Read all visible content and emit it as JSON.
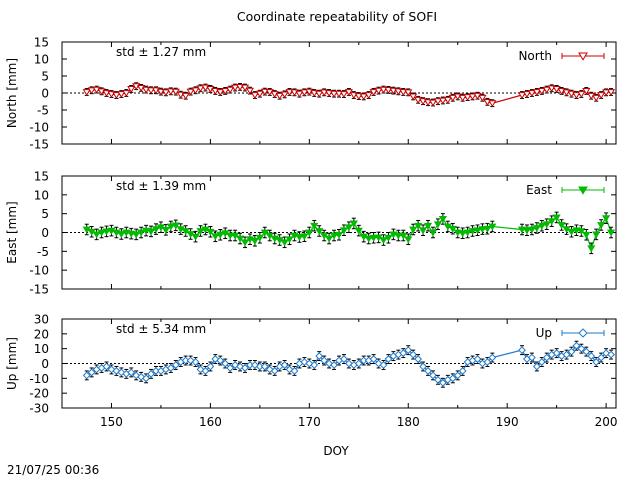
{
  "title": "Coordinate repeatability of SOFI",
  "timestamp": "21/07/25 00:36",
  "xlabel": "DOY",
  "x_ticks": [
    "150",
    "160",
    "170",
    "180",
    "190",
    "200"
  ],
  "colors": {
    "north": "#cc0000",
    "east": "#00bb00",
    "up": "#1f78c8",
    "error": "#000000"
  },
  "chart_data": [
    {
      "type": "line",
      "name": "North",
      "title": "Coordinate repeatability of SOFI",
      "xlabel": "DOY",
      "ylabel": "North [mm]",
      "xlim": [
        145,
        201
      ],
      "ylim": [
        -15,
        15
      ],
      "y_ticks": [
        "15",
        "10",
        "5",
        "0",
        "-5",
        "-10",
        "-15"
      ],
      "legend": "North",
      "legend_position": "top-right",
      "annotation": "std ± 1.27 mm",
      "marker": "triangle-down-open",
      "error_bar": 1.0,
      "x": [
        147.5,
        148,
        148.5,
        149,
        149.5,
        150,
        150.5,
        151,
        151.5,
        152,
        152.5,
        153,
        153.5,
        154,
        154.5,
        155,
        155.5,
        156,
        156.5,
        157,
        157.5,
        158,
        158.5,
        159,
        159.5,
        160,
        160.5,
        161,
        161.5,
        162,
        162.5,
        163,
        163.5,
        164,
        164.5,
        165,
        165.5,
        166,
        166.5,
        167,
        167.5,
        168,
        168.5,
        169,
        169.5,
        170,
        170.5,
        171,
        171.5,
        172,
        172.5,
        173,
        173.5,
        174,
        174.5,
        175,
        175.5,
        176,
        176.5,
        177,
        177.5,
        178,
        178.5,
        179,
        179.5,
        180,
        180.5,
        181,
        181.5,
        182,
        182.5,
        183,
        183.5,
        184,
        184.5,
        185,
        185.5,
        186,
        186.5,
        187,
        187.5,
        188,
        188.5,
        191.5,
        192,
        192.5,
        193,
        193.5,
        194,
        194.5,
        195,
        195.5,
        196,
        196.5,
        197,
        197.5,
        198,
        198.5,
        199,
        199.5,
        200,
        200.5
      ],
      "values": [
        0.3,
        0.8,
        1.0,
        0.5,
        0.0,
        -0.3,
        -0.6,
        -0.3,
        0.0,
        1.2,
        2.0,
        1.5,
        1.0,
        0.8,
        0.8,
        0.4,
        0.2,
        0.5,
        0.4,
        -0.5,
        -0.8,
        0.4,
        0.8,
        1.4,
        1.6,
        1.2,
        0.6,
        0.3,
        0.6,
        1.0,
        1.6,
        1.8,
        1.6,
        0.7,
        -0.6,
        -0.2,
        0.4,
        0.3,
        -0.3,
        -0.8,
        -0.4,
        0.3,
        0.2,
        -0.2,
        0.2,
        0.4,
        0.0,
        -0.2,
        0.2,
        0.0,
        -0.2,
        -0.2,
        -0.3,
        0.3,
        -0.6,
        -0.9,
        -1.0,
        -0.6,
        0.3,
        0.7,
        1.0,
        0.9,
        0.7,
        0.5,
        0.3,
        0.2,
        -1.0,
        -2.0,
        -2.4,
        -2.7,
        -2.8,
        -2.4,
        -2.2,
        -2.0,
        -1.4,
        -1.0,
        -1.4,
        -1.2,
        -1.0,
        -0.8,
        -1.4,
        -2.6,
        -3.0,
        -0.6,
        -0.3,
        0.0,
        0.3,
        0.6,
        1.0,
        1.4,
        1.2,
        0.6,
        0.2,
        -0.2,
        -0.6,
        -0.3,
        0.6,
        -0.8,
        -1.4,
        -0.6,
        0.2,
        0.3
      ]
    },
    {
      "type": "line",
      "name": "East",
      "xlabel": "DOY",
      "ylabel": "East [mm]",
      "xlim": [
        145,
        201
      ],
      "ylim": [
        -15,
        15
      ],
      "y_ticks": [
        "15",
        "10",
        "5",
        "0",
        "-5",
        "-10",
        "-15"
      ],
      "legend": "East",
      "legend_position": "top-right",
      "annotation": "std ± 1.39 mm",
      "marker": "triangle-down-filled",
      "error_bar": 1.4,
      "x": [
        147.5,
        148,
        148.5,
        149,
        149.5,
        150,
        150.5,
        151,
        151.5,
        152,
        152.5,
        153,
        153.5,
        154,
        154.5,
        155,
        155.5,
        156,
        156.5,
        157,
        157.5,
        158,
        158.5,
        159,
        159.5,
        160,
        160.5,
        161,
        161.5,
        162,
        162.5,
        163,
        163.5,
        164,
        164.5,
        165,
        165.5,
        166,
        166.5,
        167,
        167.5,
        168,
        168.5,
        169,
        169.5,
        170,
        170.5,
        171,
        171.5,
        172,
        172.5,
        173,
        173.5,
        174,
        174.5,
        175,
        175.5,
        176,
        176.5,
        177,
        177.5,
        178,
        178.5,
        179,
        179.5,
        180,
        180.5,
        181,
        181.5,
        182,
        182.5,
        183,
        183.5,
        184,
        184.5,
        185,
        185.5,
        186,
        186.5,
        187,
        187.5,
        188,
        188.5,
        191.5,
        192,
        192.5,
        193,
        193.5,
        194,
        194.5,
        195,
        195.5,
        196,
        196.5,
        197,
        197.5,
        198,
        198.5,
        199,
        199.5,
        200,
        200.5
      ],
      "values": [
        0.8,
        0.2,
        -0.5,
        0.0,
        0.3,
        0.5,
        0.0,
        -0.4,
        0.0,
        -0.3,
        -0.5,
        0.0,
        0.5,
        0.3,
        0.9,
        1.4,
        0.7,
        1.6,
        1.9,
        0.9,
        0.4,
        -0.4,
        -1.1,
        0.4,
        0.8,
        0.2,
        -1.0,
        -0.6,
        -0.2,
        -0.8,
        -0.8,
        -1.6,
        -2.6,
        -1.8,
        -2.2,
        -1.4,
        0.0,
        -0.8,
        -1.6,
        -2.0,
        -2.6,
        -1.8,
        -0.8,
        -1.2,
        -1.0,
        0.0,
        1.8,
        0.4,
        -0.8,
        -1.6,
        -0.8,
        -0.6,
        0.6,
        1.4,
        2.4,
        0.5,
        -1.1,
        -1.6,
        -1.4,
        -1.3,
        -2.0,
        -1.4,
        -0.5,
        -0.8,
        -0.8,
        -1.8,
        0.8,
        1.8,
        0.6,
        1.8,
        0.0,
        2.2,
        3.6,
        1.6,
        1.0,
        0.0,
        -0.2,
        0.0,
        0.4,
        0.6,
        0.9,
        1.0,
        1.6,
        0.8,
        0.6,
        0.8,
        1.2,
        1.8,
        2.2,
        3.0,
        4.0,
        2.0,
        0.9,
        0.2,
        0.6,
        0.4,
        -0.6,
        -4.2,
        -0.5,
        2.0,
        3.8,
        0.0
      ]
    },
    {
      "type": "line",
      "name": "Up",
      "xlabel": "DOY",
      "ylabel": "Up [mm]",
      "xlim": [
        145,
        201
      ],
      "ylim": [
        -30,
        30
      ],
      "y_ticks": [
        "30",
        "20",
        "10",
        "0",
        "-10",
        "-20",
        "-30"
      ],
      "legend": "Up",
      "legend_position": "top-right",
      "annotation": "std ± 5.34 mm",
      "marker": "diamond-open",
      "error_bar": 3.0,
      "x": [
        147.5,
        148,
        148.5,
        149,
        149.5,
        150,
        150.5,
        151,
        151.5,
        152,
        152.5,
        153,
        153.5,
        154,
        154.5,
        155,
        155.5,
        156,
        156.5,
        157,
        157.5,
        158,
        158.5,
        159,
        159.5,
        160,
        160.5,
        161,
        161.5,
        162,
        162.5,
        163,
        163.5,
        164,
        164.5,
        165,
        165.5,
        166,
        166.5,
        167,
        167.5,
        168,
        168.5,
        169,
        169.5,
        170,
        170.5,
        171,
        171.5,
        172,
        172.5,
        173,
        173.5,
        174,
        174.5,
        175,
        175.5,
        176,
        176.5,
        177,
        177.5,
        178,
        178.5,
        179,
        179.5,
        180,
        180.5,
        181,
        181.5,
        182,
        182.5,
        183,
        183.5,
        184,
        184.5,
        185,
        185.5,
        186,
        186.5,
        187,
        187.5,
        188,
        188.5,
        191.5,
        192,
        192.5,
        193,
        193.5,
        194,
        194.5,
        195,
        195.5,
        196,
        196.5,
        197,
        197.5,
        198,
        198.5,
        199,
        199.5,
        200,
        200.5
      ],
      "values": [
        -8,
        -6,
        -4,
        -3,
        -2,
        -4,
        -5,
        -6,
        -7,
        -6,
        -8,
        -9,
        -10,
        -7,
        -5,
        -5,
        -4,
        -3,
        -1,
        1,
        2,
        2,
        1,
        -4,
        -5,
        -2,
        3,
        2,
        0,
        -3,
        -1,
        -2,
        -3,
        -1,
        -1,
        -2,
        -2,
        -4,
        -5,
        -2,
        -1,
        -4,
        -5,
        0,
        1,
        0,
        -1,
        5,
        2,
        0,
        -1,
        2,
        3,
        0,
        -1,
        0,
        2,
        2,
        3,
        0,
        -1,
        3,
        5,
        6,
        7,
        9,
        6,
        3,
        -2,
        -5,
        -8,
        -11,
        -13,
        -11,
        -10,
        -8,
        -5,
        1,
        2,
        3,
        0,
        1,
        4,
        9,
        3,
        4,
        -2,
        1,
        4,
        6,
        7,
        5,
        6,
        8,
        12,
        10,
        8,
        5,
        1,
        4,
        7,
        6
      ]
    }
  ]
}
